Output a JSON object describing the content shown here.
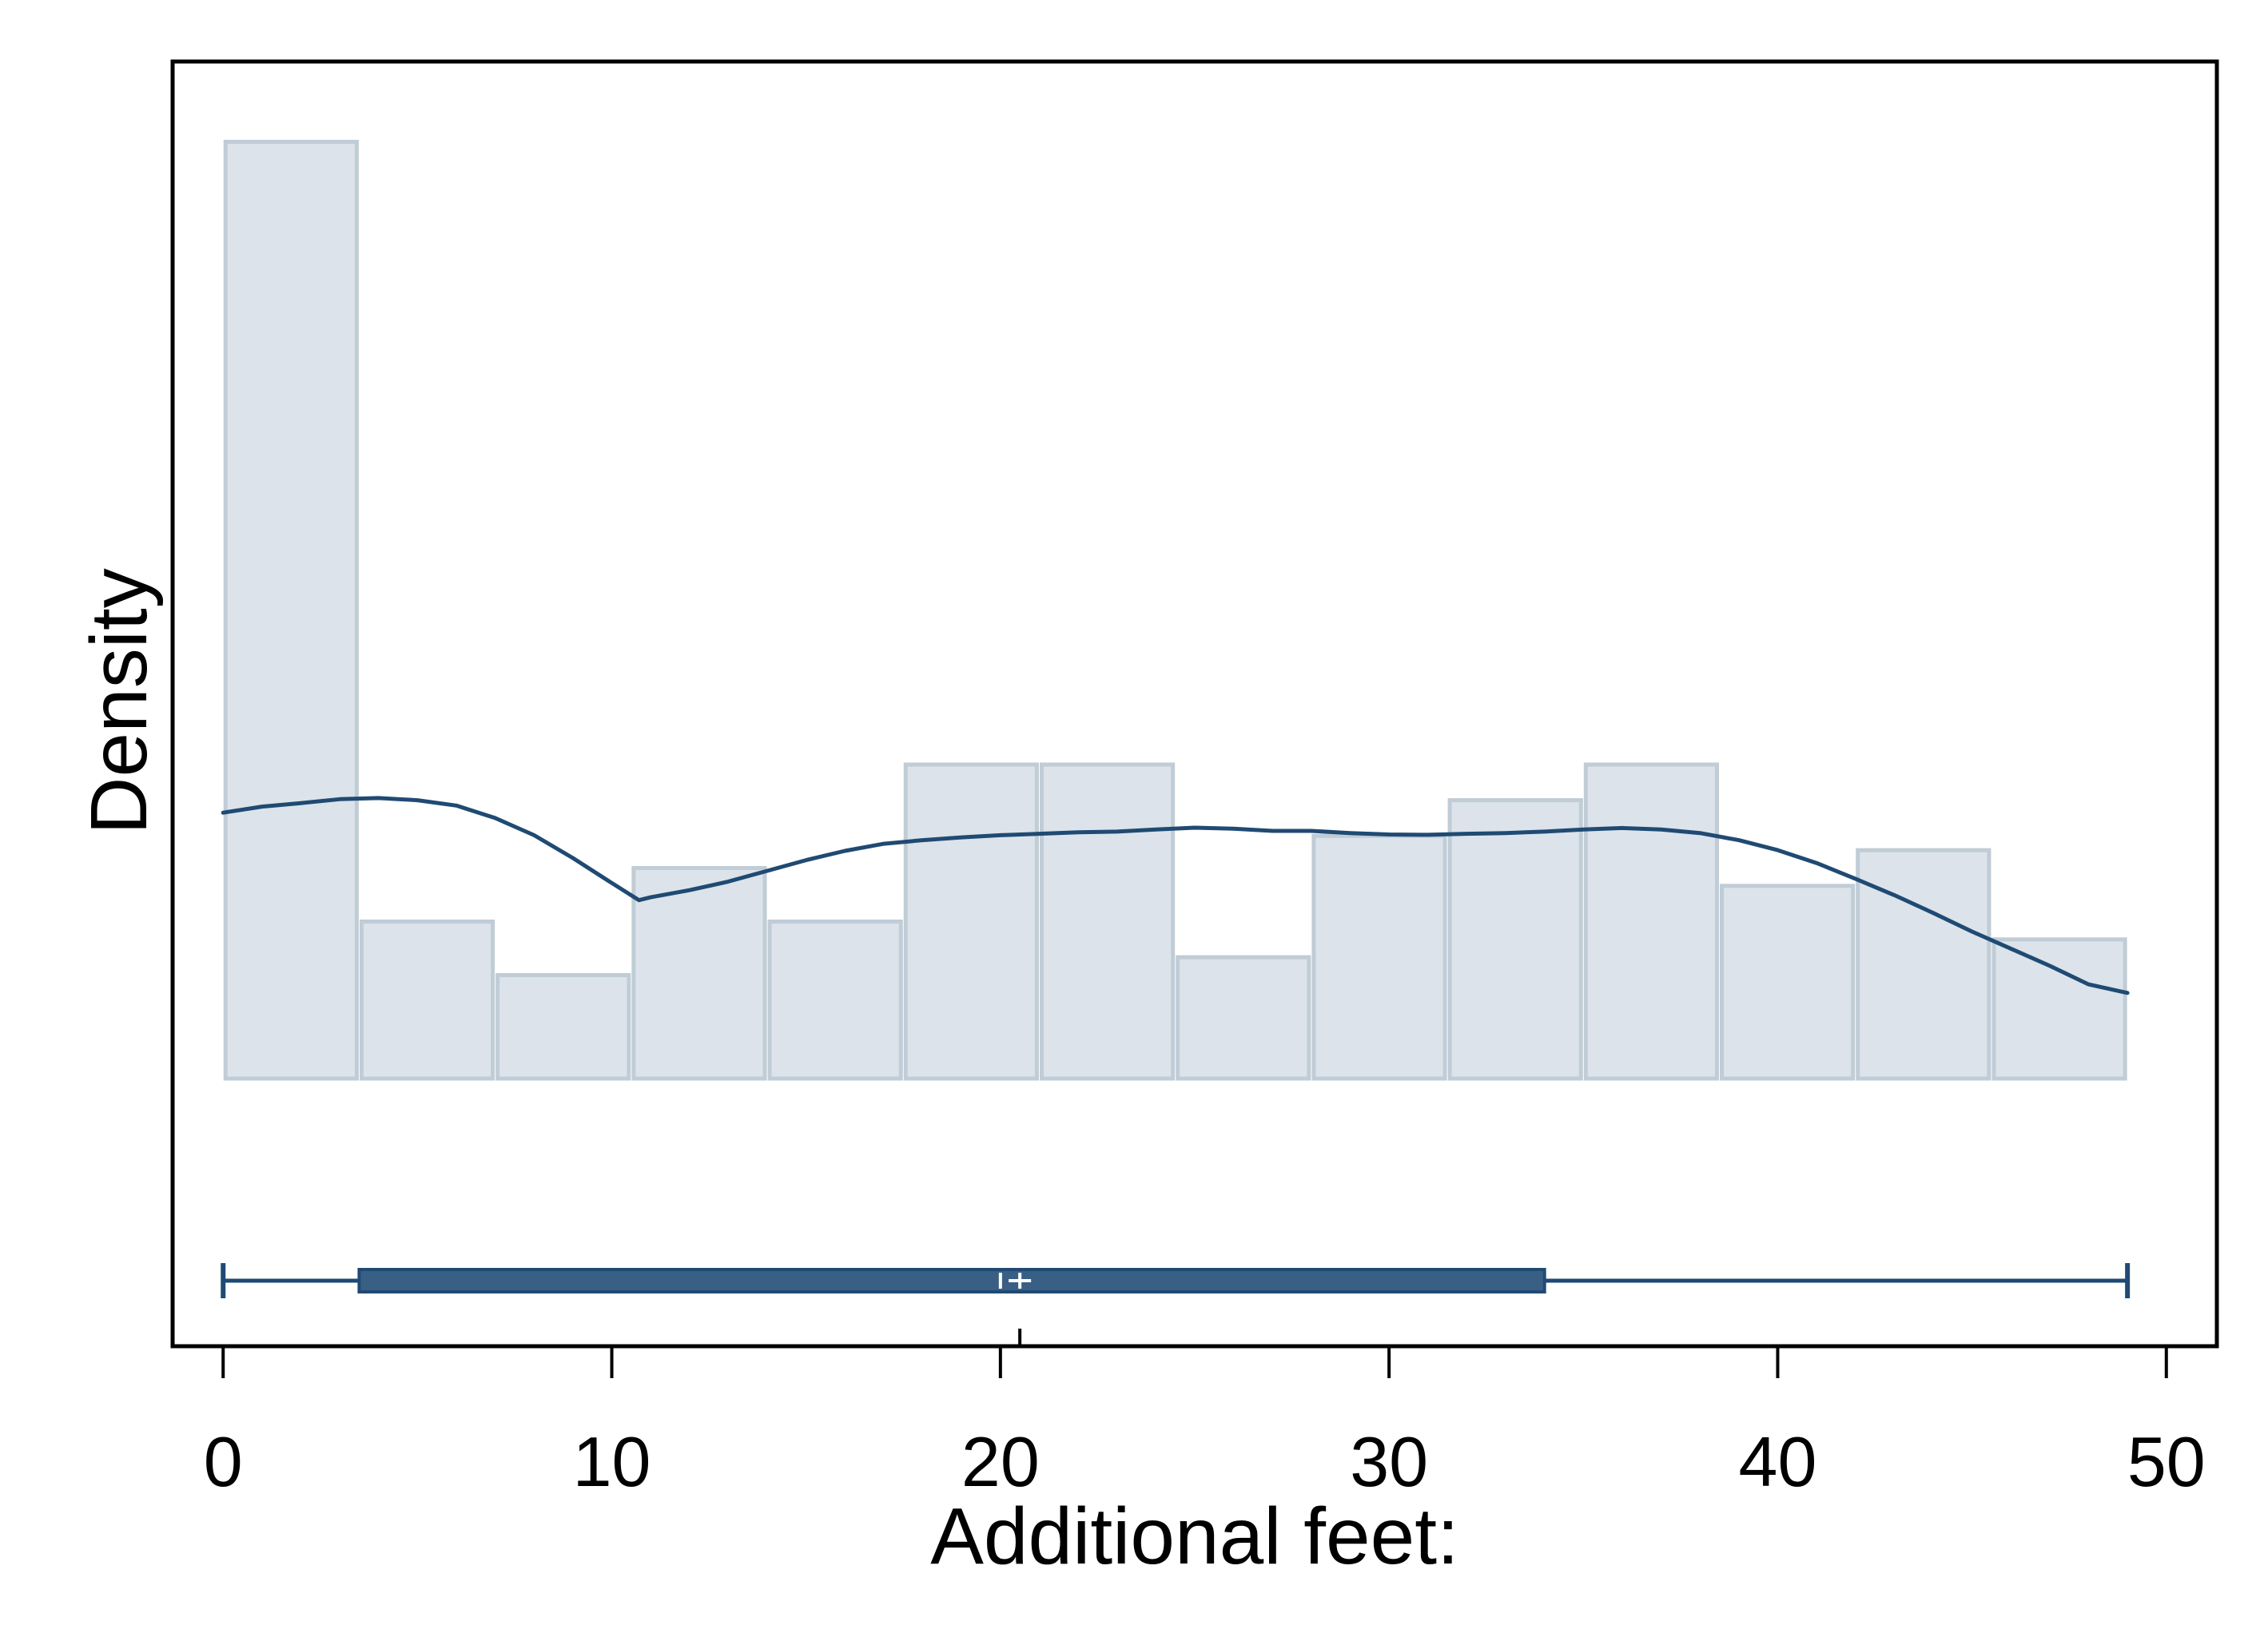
{
  "chart_data": {
    "type": "bar",
    "subtype": "histogram with kernel density and box plot",
    "xlabel": "Additional feet:",
    "ylabel": "Density",
    "xlim": [
      -1.3,
      51.3
    ],
    "ylim": [
      -0.0075,
      0.0285
    ],
    "x_ticks": [
      0,
      10,
      20,
      30,
      40,
      50
    ],
    "bins": [
      {
        "start": 0.0,
        "end": 3.5,
        "density": 0.02625
      },
      {
        "start": 3.5,
        "end": 7.0,
        "density": 0.0044
      },
      {
        "start": 7.0,
        "end": 10.5,
        "density": 0.0029
      },
      {
        "start": 10.5,
        "end": 14.0,
        "density": 0.0059
      },
      {
        "start": 14.0,
        "end": 17.5,
        "density": 0.0044
      },
      {
        "start": 17.5,
        "end": 21.0,
        "density": 0.0088
      },
      {
        "start": 21.0,
        "end": 24.5,
        "density": 0.0088
      },
      {
        "start": 24.5,
        "end": 28.0,
        "density": 0.0034
      },
      {
        "start": 28.0,
        "end": 31.5,
        "density": 0.0068
      },
      {
        "start": 31.5,
        "end": 35.0,
        "density": 0.0078
      },
      {
        "start": 35.0,
        "end": 38.5,
        "density": 0.0088
      },
      {
        "start": 38.5,
        "end": 42.0,
        "density": 0.0054
      },
      {
        "start": 42.0,
        "end": 45.5,
        "density": 0.0064
      },
      {
        "start": 45.5,
        "end": 49.0,
        "density": 0.0039
      }
    ],
    "density_curve": {
      "x": [
        0,
        1,
        2,
        3,
        4,
        5,
        6,
        7,
        8,
        9,
        10,
        10.7,
        11,
        12,
        13,
        14,
        15,
        16,
        17,
        18,
        19,
        20,
        21,
        22,
        23,
        24,
        25,
        26,
        27,
        28,
        29,
        30,
        31,
        32,
        33,
        34,
        35,
        36,
        37,
        38,
        39,
        40,
        41,
        42,
        43,
        44,
        45,
        46,
        47,
        48,
        49
      ],
      "y": [
        0.00745,
        0.00762,
        0.00772,
        0.00783,
        0.00786,
        0.0078,
        0.00765,
        0.0073,
        0.00682,
        0.00618,
        0.00548,
        0.005,
        0.00508,
        0.00528,
        0.00552,
        0.00582,
        0.00612,
        0.00638,
        0.00658,
        0.00668,
        0.00676,
        0.00682,
        0.00686,
        0.0069,
        0.00692,
        0.00698,
        0.00703,
        0.007,
        0.00694,
        0.00694,
        0.00688,
        0.00684,
        0.00683,
        0.00686,
        0.00688,
        0.00692,
        0.00698,
        0.00702,
        0.00698,
        0.00688,
        0.00668,
        0.0064,
        0.00604,
        0.0056,
        0.00514,
        0.00464,
        0.00412,
        0.00364,
        0.00316,
        0.00264,
        0.0024
      ]
    },
    "box_plot": {
      "min": 0,
      "q1": 3.5,
      "median": 20.0,
      "mean": 20.5,
      "q3": 34,
      "max": 49
    },
    "colors": {
      "bar_fill": "#dce3ea",
      "bar_edge": "#c0ccd6",
      "series": "#1f4a73",
      "box_fill": "#3a5f85",
      "box_edge": "#1f4a73",
      "frame": "#000000"
    },
    "grid": false,
    "legend": "none"
  }
}
